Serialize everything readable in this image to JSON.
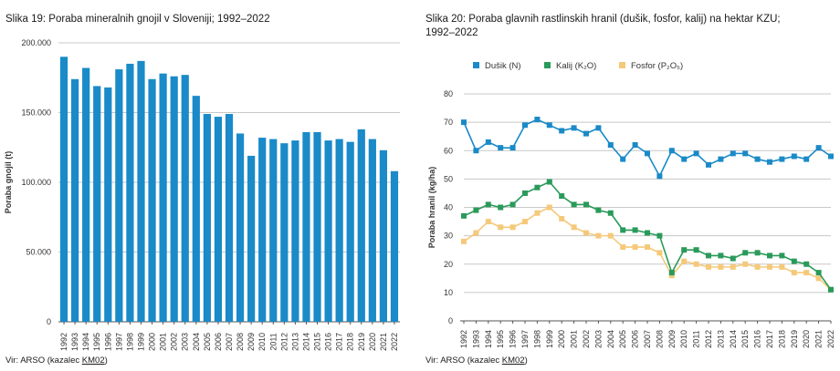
{
  "left": {
    "title": "Slika 19: Poraba mineralnih gnojil v Sloveniji; 1992–2022",
    "source_prefix": "Vir: ARSO (kazalec ",
    "source_link": "KM02",
    "source_suffix": ")"
  },
  "right": {
    "title_line1": "Slika 20: Poraba glavnih rastlinskih hranil (dušik, fosfor, kalij) na hektar KZU;",
    "title_line2": "1992–2022",
    "source_prefix": "Vir: ARSO (kazalec ",
    "source_link": "KM02",
    "source_suffix": ")"
  },
  "colors": {
    "bar": "#1a8ac8",
    "dusik": "#1a8ac8",
    "kalij": "#2a9a5a",
    "fosfor": "#f5c97a",
    "grid": "#c8c8c8"
  },
  "chart_data": [
    {
      "type": "bar",
      "title": "Slika 19: Poraba mineralnih gnojil v Sloveniji; 1992–2022",
      "ylabel": "Poraba gnojil (t)",
      "xlabel": "",
      "ylim": [
        0,
        200000
      ],
      "yticks": [
        0,
        50000,
        100000,
        150000,
        200000
      ],
      "ytick_labels": [
        "0",
        "50.000",
        "100.000",
        "150.000",
        "200.000"
      ],
      "grid": true,
      "categories": [
        "1992",
        "1993",
        "1994",
        "1995",
        "1996",
        "1997",
        "1998",
        "1999",
        "2000",
        "2001",
        "2002",
        "2003",
        "2004",
        "2005",
        "2006",
        "2007",
        "2008",
        "2009",
        "2010",
        "2011",
        "2012",
        "2013",
        "2014",
        "2015",
        "2016",
        "2017",
        "2018",
        "2019",
        "2020",
        "2021",
        "2022"
      ],
      "values": [
        190000,
        174000,
        182000,
        169000,
        168000,
        181000,
        185000,
        187000,
        174000,
        178000,
        176000,
        177000,
        162000,
        149000,
        147000,
        149000,
        135000,
        119000,
        132000,
        131000,
        128000,
        130000,
        136000,
        136000,
        130000,
        131000,
        129000,
        138000,
        131000,
        123000,
        108000
      ]
    },
    {
      "type": "line",
      "title": "Slika 20: Poraba glavnih rastlinskih hranil (dušik, fosfor, kalij) na hektar KZU; 1992–2022",
      "ylabel": "Poraba hranil (kg/ha)",
      "xlabel": "",
      "ylim": [
        0,
        80
      ],
      "yticks": [
        0,
        10,
        20,
        30,
        40,
        50,
        60,
        70,
        80
      ],
      "grid": true,
      "legend_position": "top",
      "x": [
        "1992",
        "1993",
        "1994",
        "1995",
        "1996",
        "1997",
        "1998",
        "1999",
        "2000",
        "2001",
        "2002",
        "2003",
        "2004",
        "2005",
        "2006",
        "2007",
        "2008",
        "2009",
        "2010",
        "2011",
        "2012",
        "2013",
        "2014",
        "2015",
        "2016",
        "2017",
        "2018",
        "2019",
        "2020",
        "2021",
        "2022"
      ],
      "series": [
        {
          "name": "Dušik (N)",
          "key": "dusik",
          "values": [
            70,
            60,
            63,
            61,
            61,
            69,
            71,
            69,
            67,
            68,
            66,
            68,
            62,
            57,
            62,
            59,
            51,
            60,
            57,
            59,
            55,
            57,
            59,
            59,
            57,
            56,
            57,
            58,
            57,
            61,
            58
          ]
        },
        {
          "name": "Kalij (K₂O)",
          "key": "kalij",
          "values": [
            37,
            39,
            41,
            40,
            41,
            45,
            47,
            49,
            44,
            41,
            41,
            39,
            38,
            32,
            32,
            31,
            30,
            17,
            25,
            25,
            23,
            23,
            22,
            24,
            24,
            23,
            23,
            21,
            20,
            17,
            11
          ]
        },
        {
          "name": "Fosfor (P₂O₅)",
          "key": "fosfor",
          "values": [
            28,
            31,
            35,
            33,
            33,
            35,
            38,
            40,
            36,
            33,
            31,
            30,
            30,
            26,
            26,
            26,
            24,
            16,
            21,
            20,
            19,
            19,
            19,
            20,
            19,
            19,
            19,
            17,
            17,
            15,
            11
          ]
        }
      ]
    }
  ]
}
